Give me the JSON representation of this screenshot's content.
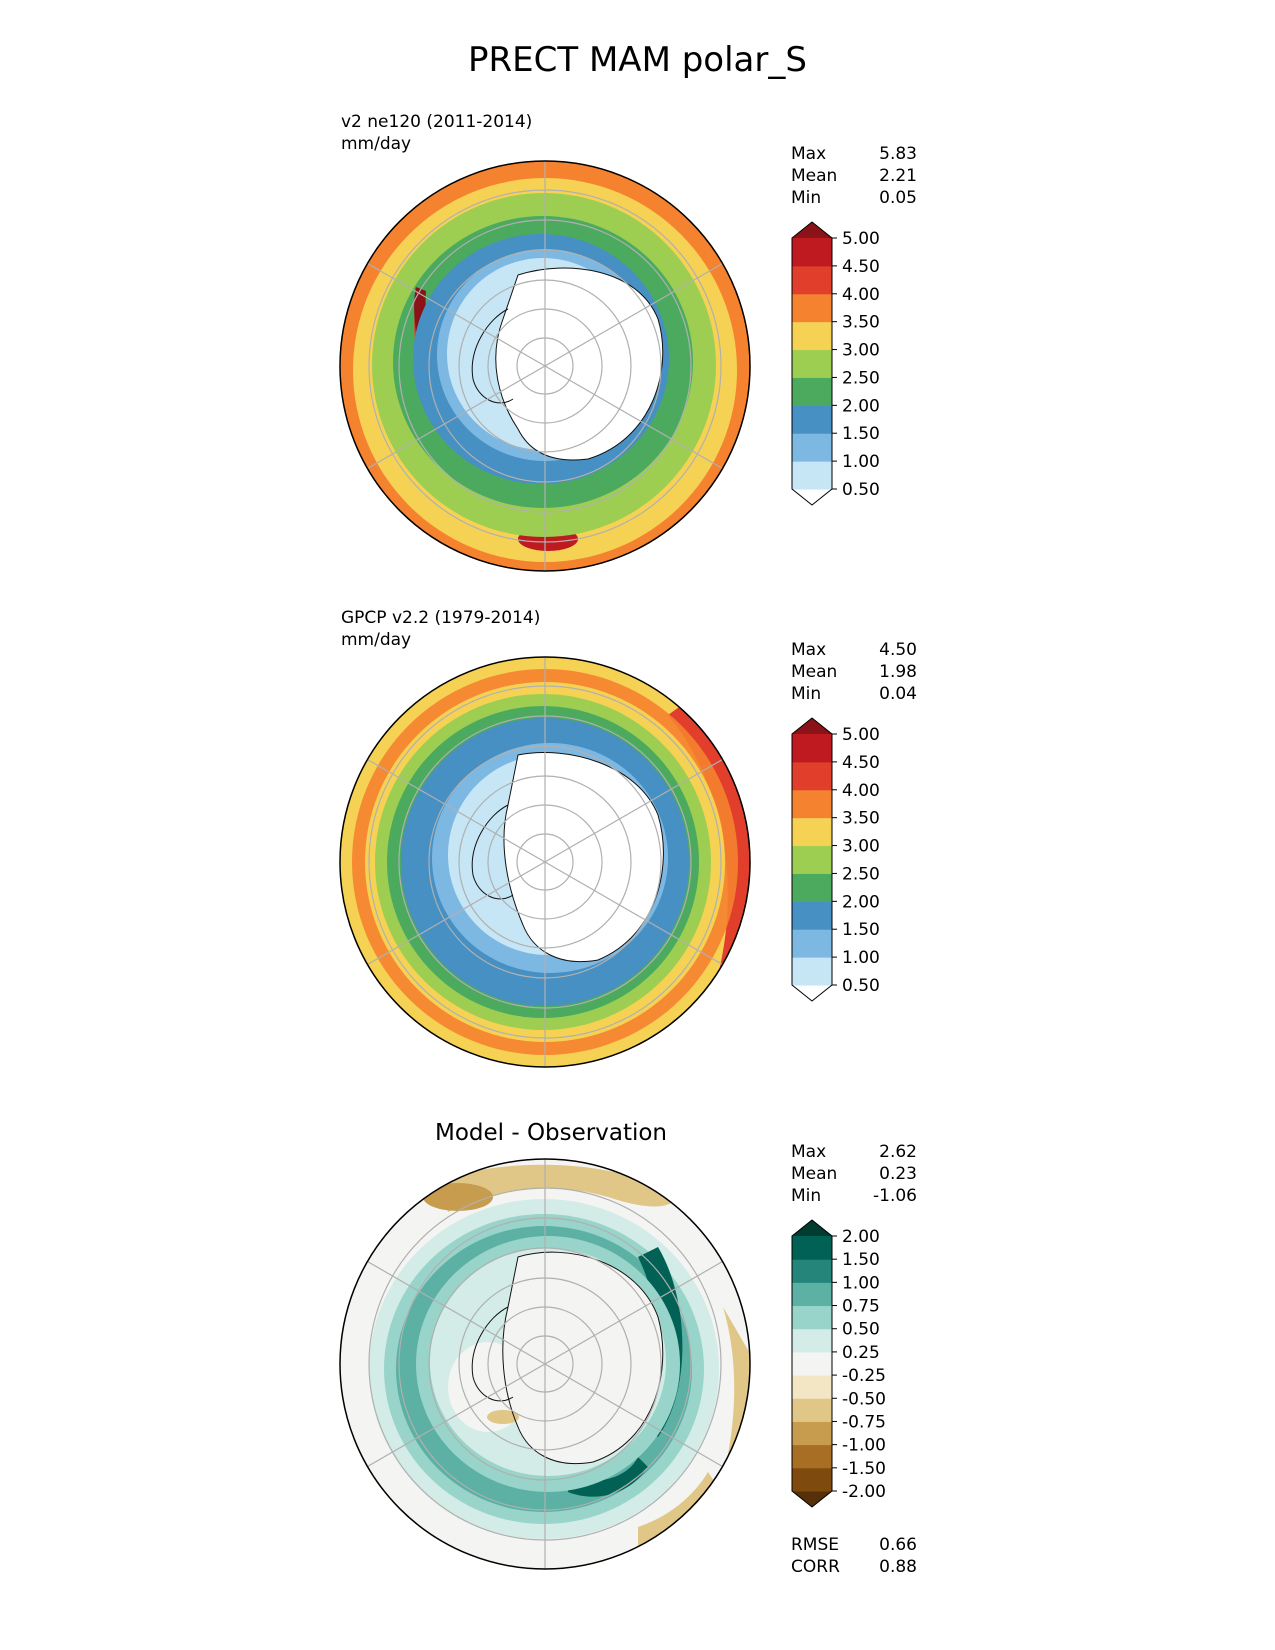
{
  "title": "PRECT MAM polar_S",
  "panels": [
    {
      "name": "test",
      "label": "v2 ne120 (2011-2014)",
      "units": "mm/day",
      "stats": [
        {
          "label": "Max",
          "value": "5.83"
        },
        {
          "label": "Mean",
          "value": "2.21"
        },
        {
          "label": "Min",
          "value": "0.05"
        }
      ],
      "colorbar": {
        "levels": [
          "0.50",
          "1.00",
          "1.50",
          "2.00",
          "2.50",
          "3.00",
          "3.50",
          "4.00",
          "4.50",
          "5.00"
        ],
        "colors": [
          "#ffffff",
          "#c6e6f6",
          "#7db8e3",
          "#4690c3",
          "#4caa5f",
          "#9dce52",
          "#f6d254",
          "#f5822f",
          "#e13e2b",
          "#be1a20",
          "#8b1218"
        ]
      }
    },
    {
      "name": "reference",
      "label": "GPCP v2.2 (1979-2014)",
      "units": "mm/day",
      "stats": [
        {
          "label": "Max",
          "value": "4.50"
        },
        {
          "label": "Mean",
          "value": "1.98"
        },
        {
          "label": "Min",
          "value": "0.04"
        }
      ],
      "colorbar": {
        "levels": [
          "0.50",
          "1.00",
          "1.50",
          "2.00",
          "2.50",
          "3.00",
          "3.50",
          "4.00",
          "4.50",
          "5.00"
        ],
        "colors": [
          "#ffffff",
          "#c6e6f6",
          "#7db8e3",
          "#4690c3",
          "#4caa5f",
          "#9dce52",
          "#f6d254",
          "#f5822f",
          "#e13e2b",
          "#be1a20",
          "#8b1218"
        ]
      }
    },
    {
      "name": "difference",
      "title": "Model - Observation",
      "stats": [
        {
          "label": "Max",
          "value": "2.62"
        },
        {
          "label": "Mean",
          "value": "0.23"
        },
        {
          "label": "Min",
          "value": "-1.06"
        }
      ],
      "colorbar": {
        "levels": [
          "-2.00",
          "-1.50",
          "-1.00",
          "-0.75",
          "-0.50",
          "-0.25",
          "0.25",
          "0.50",
          "0.75",
          "1.00",
          "1.50",
          "2.00"
        ],
        "colors": [
          "#553008",
          "#7f4a0e",
          "#a86e23",
          "#c89c4e",
          "#e0c687",
          "#f3e6c4",
          "#f4f4f2",
          "#d3ece7",
          "#98d4c9",
          "#5cb0a4",
          "#25857a",
          "#016155",
          "#013c30"
        ]
      },
      "metrics": [
        {
          "label": "RMSE",
          "value": "0.66"
        },
        {
          "label": "CORR",
          "value": "0.88"
        }
      ]
    }
  ],
  "chart_data": [
    {
      "type": "heatmap",
      "projection": "south polar stereographic",
      "title": "PRECT MAM polar_S",
      "label": "v2 ne120 (2011-2014)",
      "units": "mm/day",
      "contour_levels": [
        0.5,
        1.0,
        1.5,
        2.0,
        2.5,
        3.0,
        3.5,
        4.0,
        4.5,
        5.0
      ],
      "stats": {
        "max": 5.83,
        "mean": 2.21,
        "min": 0.05
      },
      "grid": true
    },
    {
      "type": "heatmap",
      "projection": "south polar stereographic",
      "label": "GPCP v2.2 (1979-2014)",
      "units": "mm/day",
      "contour_levels": [
        0.5,
        1.0,
        1.5,
        2.0,
        2.5,
        3.0,
        3.5,
        4.0,
        4.5,
        5.0
      ],
      "stats": {
        "max": 4.5,
        "mean": 1.98,
        "min": 0.04
      },
      "grid": true
    },
    {
      "type": "heatmap",
      "projection": "south polar stereographic",
      "title": "Model - Observation",
      "contour_levels": [
        -2.0,
        -1.5,
        -1.0,
        -0.75,
        -0.5,
        -0.25,
        0.25,
        0.5,
        0.75,
        1.0,
        1.5,
        2.0
      ],
      "stats": {
        "max": 2.62,
        "mean": 0.23,
        "min": -1.06
      },
      "metrics": {
        "rmse": 0.66,
        "corr": 0.88
      },
      "grid": true
    }
  ]
}
